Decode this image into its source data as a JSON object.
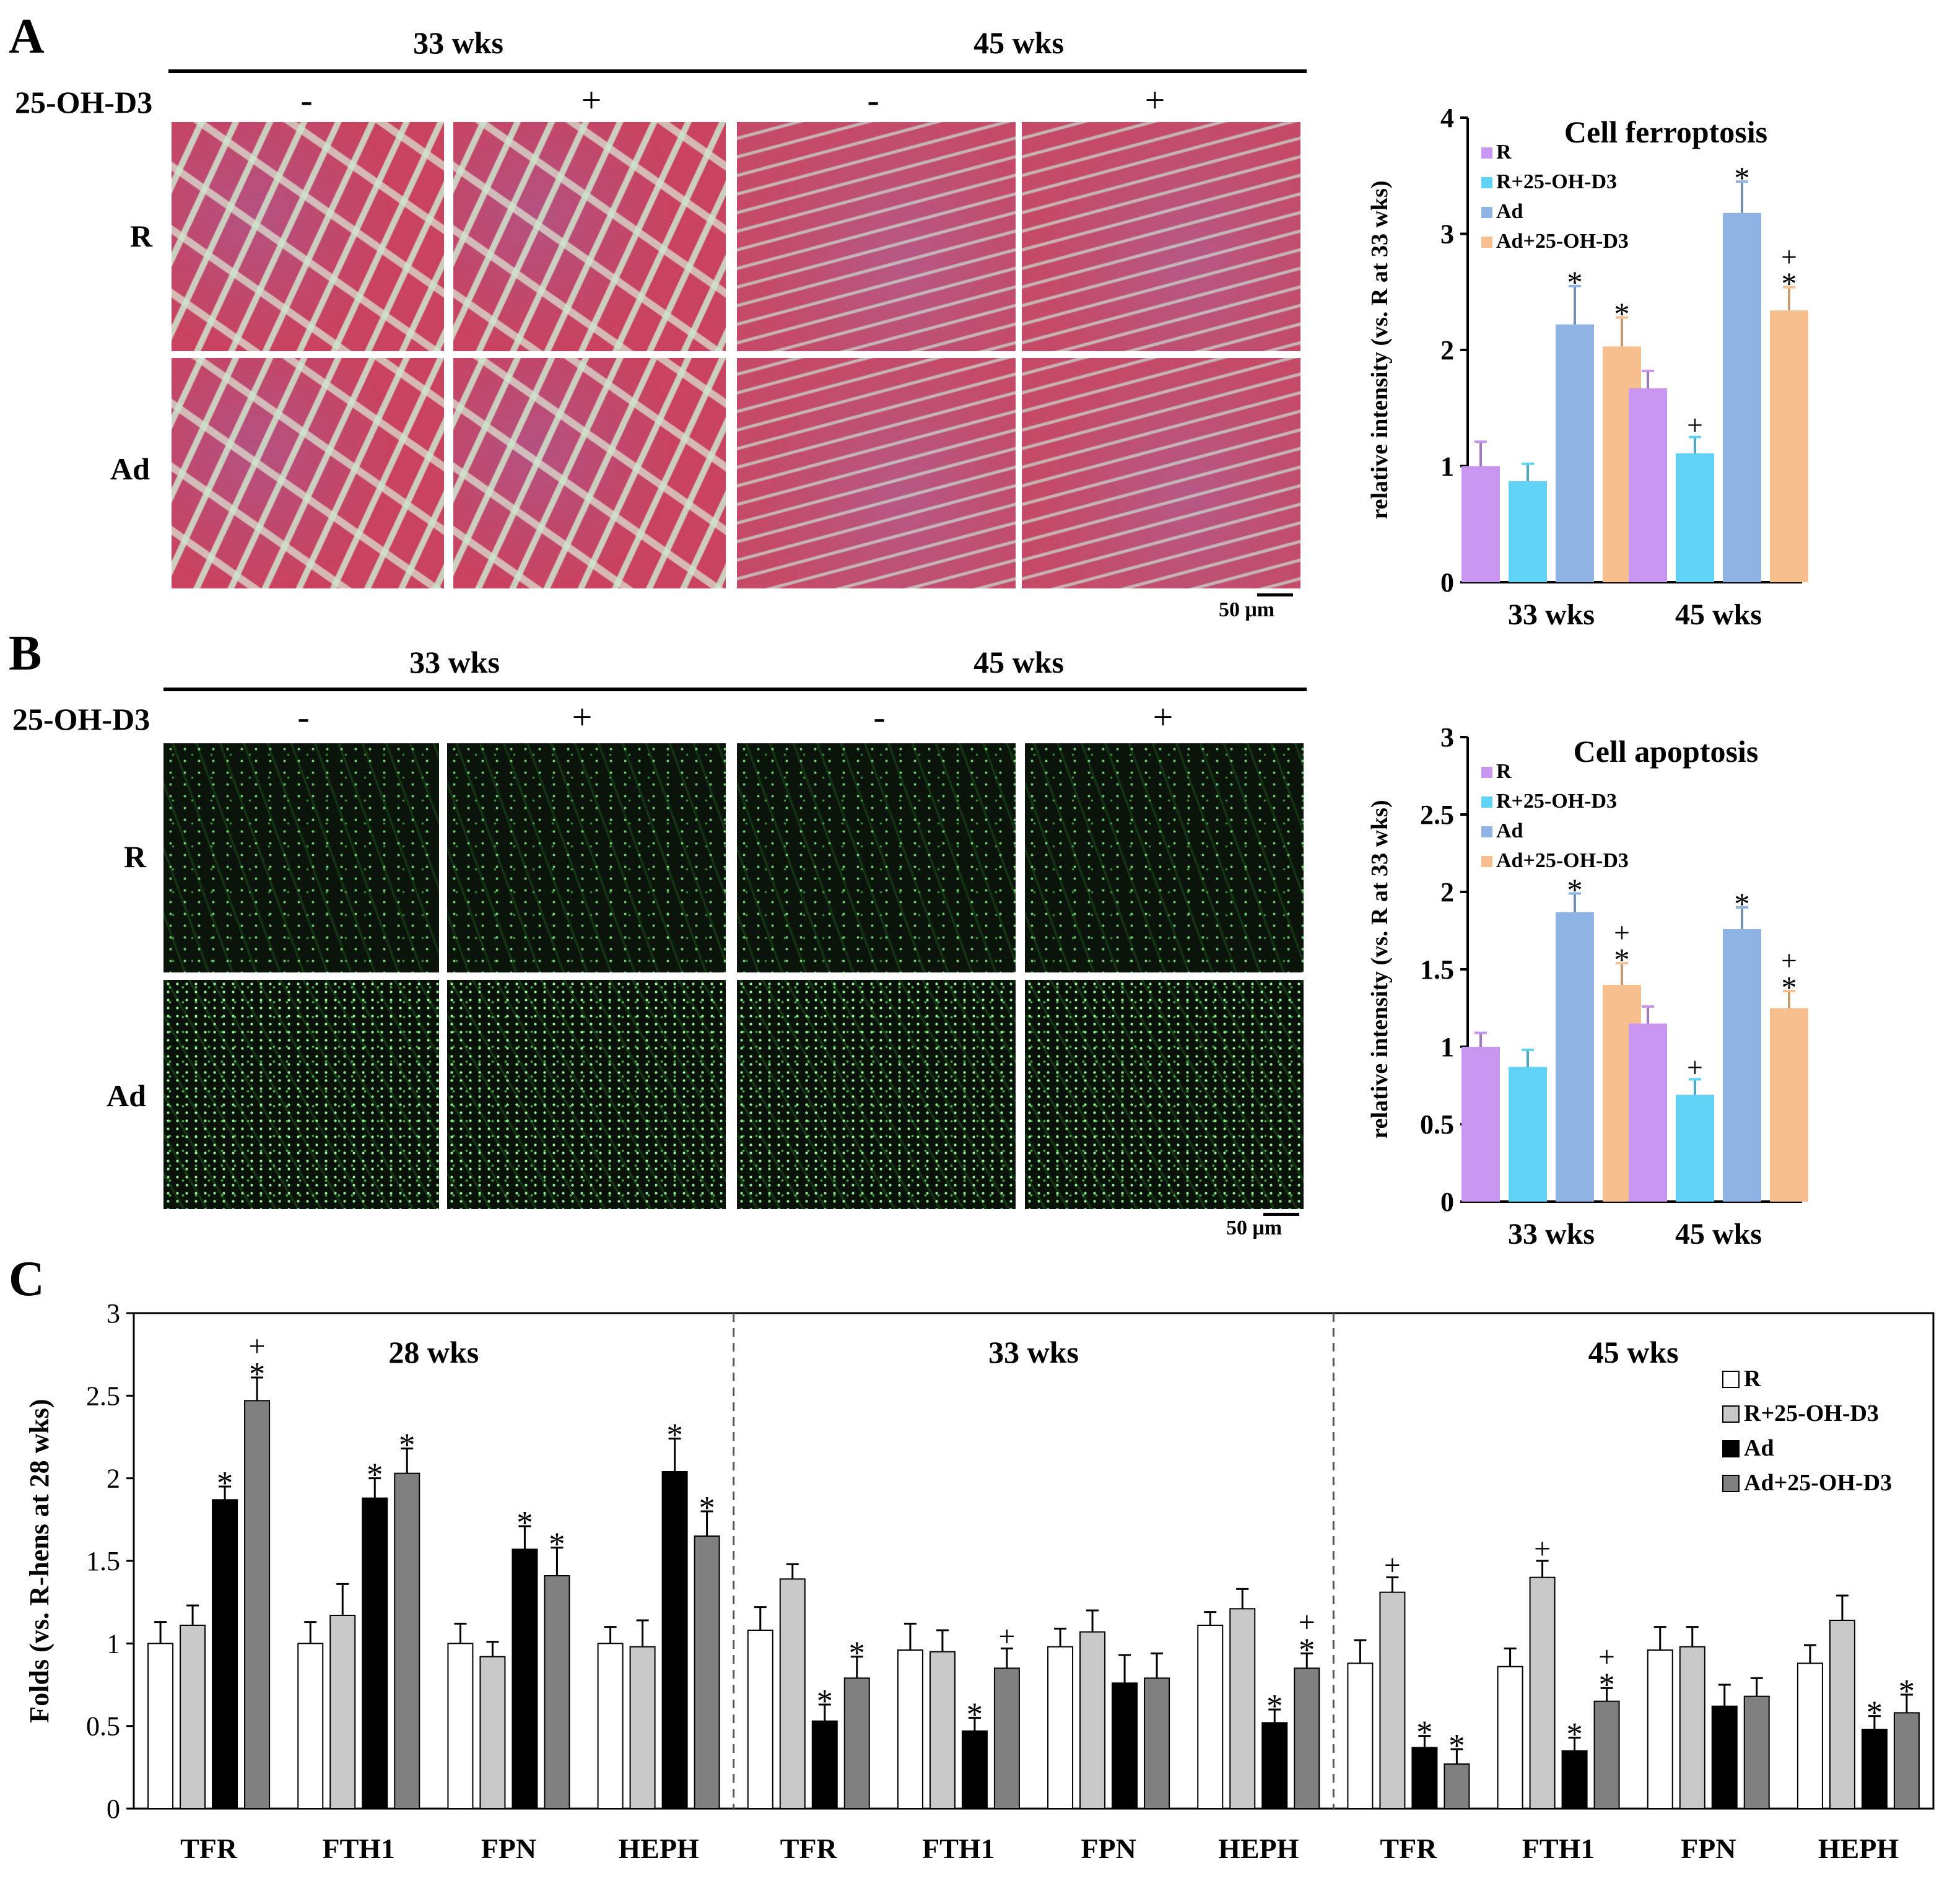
{
  "panelA": {
    "letter": "A",
    "header_33": "33 wks",
    "header_45": "45 wks",
    "treatment_label": "25-OH-D3",
    "signs": [
      "-",
      "+",
      "-",
      "+"
    ],
    "row_labels": [
      "R",
      "Ad"
    ],
    "scale": "50 μm"
  },
  "panelB": {
    "letter": "B",
    "header_33": "33 wks",
    "header_45": "45 wks",
    "treatment_label": "25-OH-D3",
    "signs": [
      "-",
      "+",
      "-",
      "+"
    ],
    "row_labels": [
      "R",
      "Ad"
    ],
    "scale": "50 μm"
  },
  "panelC": {
    "letter": "C"
  },
  "chart_data": [
    {
      "id": "ferroptosis",
      "type": "bar",
      "title": "Cell ferroptosis",
      "ylabel": "relative intensity (vs. R at 33 wks)",
      "xlabel": "",
      "ylim": [
        0,
        4
      ],
      "yticks": [
        "0",
        "1",
        "2",
        "3",
        "4"
      ],
      "categories": [
        "33 wks",
        "45 wks"
      ],
      "legend_position": "top-left",
      "series": [
        {
          "name": "R",
          "color": "#c896f0",
          "values": [
            1.0,
            1.67
          ],
          "errors": [
            0.21,
            0.15
          ],
          "marks": [
            "",
            ""
          ]
        },
        {
          "name": "R+25-OH-D3",
          "color": "#5fd2f5",
          "values": [
            0.87,
            1.11
          ],
          "errors": [
            0.15,
            0.14
          ],
          "marks": [
            "",
            "+"
          ]
        },
        {
          "name": "Ad",
          "color": "#8fb4e4",
          "values": [
            2.22,
            3.18
          ],
          "errors": [
            0.33,
            0.27
          ],
          "marks": [
            "*",
            "*"
          ]
        },
        {
          "name": "Ad+25-OH-D3",
          "color": "#f7bf8e",
          "values": [
            2.03,
            2.34
          ],
          "errors": [
            0.25,
            0.2
          ],
          "marks": [
            "*",
            "+*"
          ]
        }
      ]
    },
    {
      "id": "apoptosis",
      "type": "bar",
      "title": "Cell apoptosis",
      "ylabel": "relative intensity (vs. R at 33 wks)",
      "xlabel": "",
      "ylim": [
        0,
        3
      ],
      "yticks": [
        "0",
        "0.5",
        "1",
        "1.5",
        "2",
        "2.5",
        "3"
      ],
      "categories": [
        "33 wks",
        "45 wks"
      ],
      "legend_position": "top-left",
      "series": [
        {
          "name": "R",
          "color": "#c896f0",
          "values": [
            1.0,
            1.15
          ],
          "errors": [
            0.09,
            0.11
          ],
          "marks": [
            "",
            ""
          ]
        },
        {
          "name": "R+25-OH-D3",
          "color": "#5fd2f5",
          "values": [
            0.87,
            0.69
          ],
          "errors": [
            0.11,
            0.1
          ],
          "marks": [
            "",
            "+"
          ]
        },
        {
          "name": "Ad",
          "color": "#8fb4e4",
          "values": [
            1.87,
            1.76
          ],
          "errors": [
            0.12,
            0.14
          ],
          "marks": [
            "*",
            "*"
          ]
        },
        {
          "name": "Ad+25-OH-D3",
          "color": "#f7bf8e",
          "values": [
            1.4,
            1.25
          ],
          "errors": [
            0.14,
            0.11
          ],
          "marks": [
            "+*",
            "+*"
          ]
        }
      ]
    },
    {
      "id": "iron_genes",
      "type": "bar",
      "title": "",
      "ylabel": "Folds (vs. R-hens at 28 wks)",
      "xlabel": "",
      "ylim": [
        0,
        3
      ],
      "yticks": [
        "0",
        "0.5",
        "1",
        "1.5",
        "2",
        "2.5",
        "3"
      ],
      "legend_position": "top-right",
      "groups": [
        "28 wks",
        "33 wks",
        "45 wks"
      ],
      "categories": [
        "TFR",
        "FTH1",
        "FPN",
        "HEPH",
        "TFR",
        "FTH1",
        "FPN",
        "HEPH",
        "TFR",
        "FTH1",
        "FPN",
        "HEPH"
      ],
      "series": [
        {
          "name": "R",
          "color": "#ffffff",
          "values": [
            1.0,
            1.0,
            1.0,
            1.0,
            1.08,
            0.96,
            0.98,
            1.11,
            0.88,
            0.86,
            0.96,
            0.88
          ],
          "errors": [
            0.13,
            0.13,
            0.12,
            0.1,
            0.14,
            0.16,
            0.11,
            0.08,
            0.14,
            0.11,
            0.14,
            0.11
          ],
          "marks": [
            "",
            "",
            "",
            "",
            "",
            "",
            "",
            "",
            "",
            "",
            "",
            ""
          ]
        },
        {
          "name": "R+25-OH-D3",
          "color": "#c8c8c8",
          "values": [
            1.11,
            1.17,
            0.92,
            0.98,
            1.39,
            0.95,
            1.07,
            1.21,
            1.31,
            1.4,
            0.98,
            1.14
          ],
          "errors": [
            0.12,
            0.19,
            0.09,
            0.16,
            0.09,
            0.13,
            0.13,
            0.12,
            0.09,
            0.1,
            0.12,
            0.15
          ],
          "marks": [
            "",
            "",
            "",
            "",
            "",
            "",
            "",
            "",
            "+",
            "+",
            "",
            ""
          ]
        },
        {
          "name": "Ad",
          "color": "#000000",
          "values": [
            1.87,
            1.88,
            1.57,
            2.04,
            0.53,
            0.47,
            0.76,
            0.52,
            0.37,
            0.35,
            0.62,
            0.48
          ],
          "errors": [
            0.08,
            0.12,
            0.14,
            0.2,
            0.1,
            0.08,
            0.17,
            0.08,
            0.07,
            0.08,
            0.13,
            0.08
          ],
          "marks": [
            "*",
            "*",
            "*",
            "*",
            "*",
            "*",
            "",
            "*",
            "*",
            "*",
            "",
            "*"
          ]
        },
        {
          "name": "Ad+25-OH-D3",
          "color": "#808080",
          "values": [
            2.47,
            2.03,
            1.41,
            1.65,
            0.79,
            0.85,
            0.79,
            0.85,
            0.27,
            0.65,
            0.68,
            0.58
          ],
          "errors": [
            0.14,
            0.15,
            0.17,
            0.15,
            0.13,
            0.12,
            0.15,
            0.09,
            0.09,
            0.08,
            0.11,
            0.11
          ],
          "marks": [
            "+*",
            "*",
            "*",
            "*",
            "*",
            "+",
            "",
            "+*",
            "*",
            "+*",
            "",
            "*"
          ]
        }
      ]
    }
  ]
}
